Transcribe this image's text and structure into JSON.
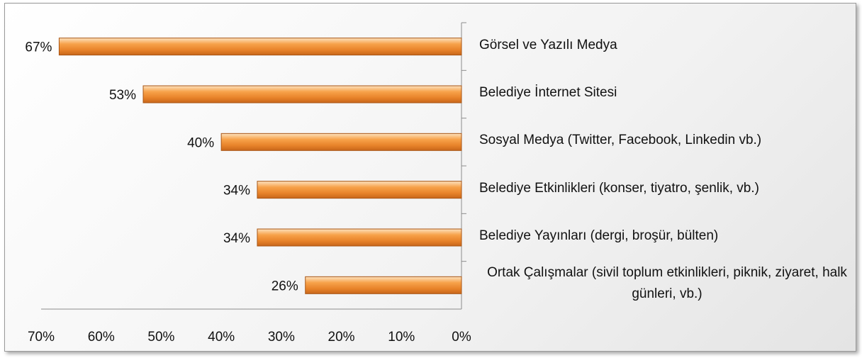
{
  "chart_data": {
    "type": "bar",
    "orientation": "horizontal",
    "x_reversed": true,
    "categories": [
      "Görsel ve Yazılı Medya",
      "Belediye İnternet Sitesi",
      "Sosyal Medya (Twitter, Facebook, Linkedin vb.)",
      "Belediye Etkinlikleri (konser, tiyatro, şenlik, vb.)",
      "Belediye Yayınları (dergi, broşür, bülten)",
      "Ortak Çalışmalar (sivil toplum etkinlikleri, piknik, ziyaret, halk günleri, vb.)"
    ],
    "values": [
      67,
      53,
      40,
      34,
      34,
      26
    ],
    "value_labels": [
      "67%",
      "53%",
      "40%",
      "34%",
      "34%",
      "26%"
    ],
    "color": "#f39a3c",
    "xlim": [
      0,
      70
    ],
    "xticks": [
      {
        "value": 70,
        "label": "70%"
      },
      {
        "value": 60,
        "label": "60%"
      },
      {
        "value": 50,
        "label": "50%"
      },
      {
        "value": 40,
        "label": "40%"
      },
      {
        "value": 30,
        "label": "30%"
      },
      {
        "value": 20,
        "label": "20%"
      },
      {
        "value": 10,
        "label": "10%"
      },
      {
        "value": 0,
        "label": "0%"
      }
    ],
    "grid": false
  }
}
